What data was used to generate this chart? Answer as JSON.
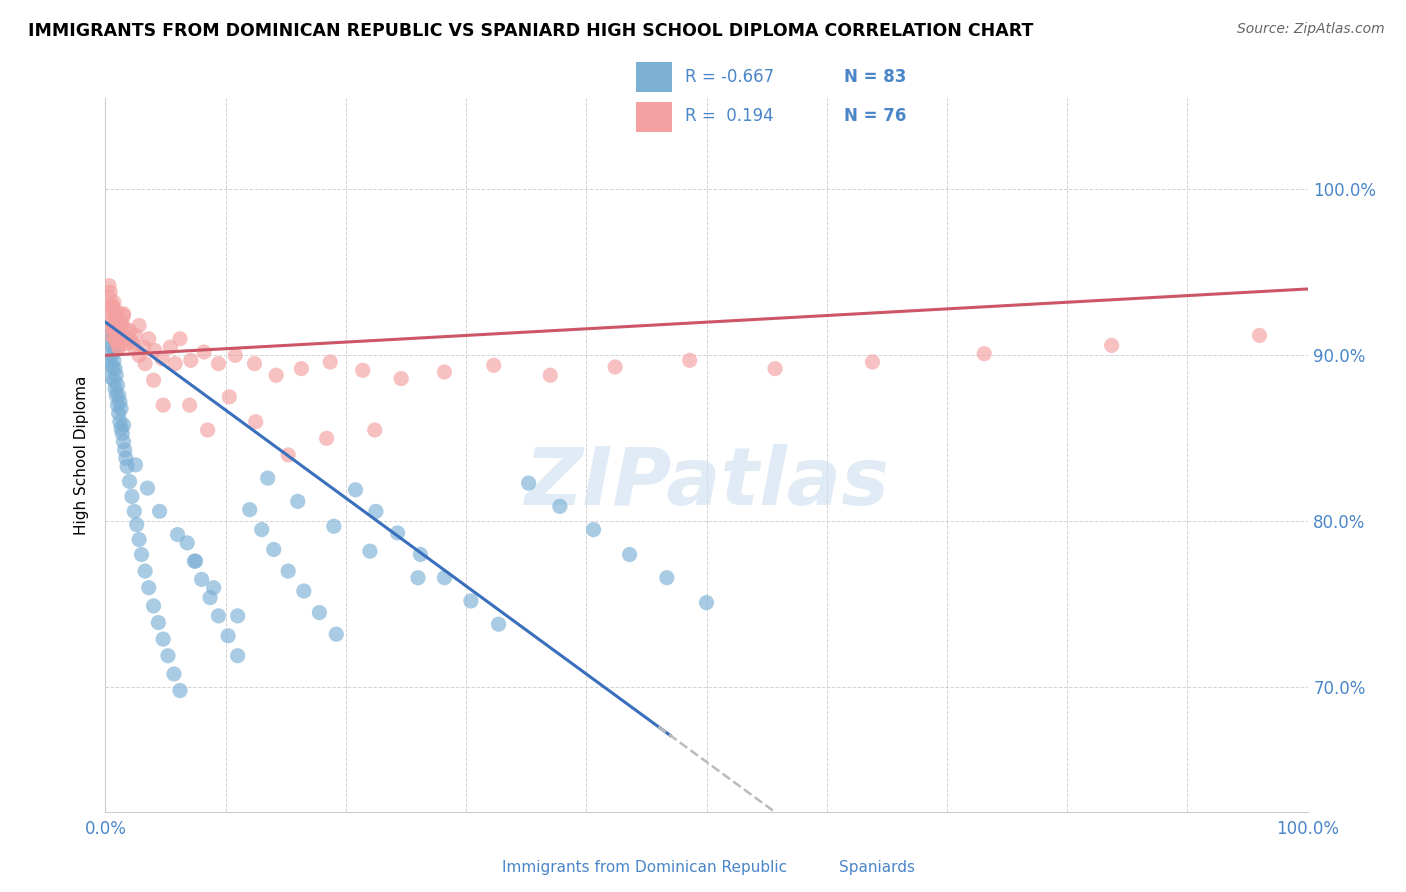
{
  "title": "IMMIGRANTS FROM DOMINICAN REPUBLIC VS SPANIARD HIGH SCHOOL DIPLOMA CORRELATION CHART",
  "source": "Source: ZipAtlas.com",
  "ylabel": "High School Diploma",
  "color_blue": "#7bafd4",
  "color_pink": "#f4a0a0",
  "color_blue_line": "#3a6fbb",
  "color_pink_line": "#cc5566",
  "color_dashed": "#bbbbbb",
  "watermark": "ZIPatlas",
  "r_blue": -0.667,
  "n_blue": 83,
  "r_pink": 0.194,
  "n_pink": 76,
  "xlim": [
    0.0,
    1.0
  ],
  "ylim": [
    0.625,
    1.055
  ],
  "ytick_positions": [
    0.7,
    0.8,
    0.9,
    1.0
  ],
  "ytick_labels": [
    "70.0%",
    "80.0%",
    "90.0%",
    "100.0%"
  ],
  "xtick_positions": [
    0.0,
    0.1,
    0.2,
    0.3,
    0.4,
    0.5,
    0.6,
    0.7,
    0.8,
    0.9,
    1.0
  ],
  "legend_blue_r": "R = -0.667",
  "legend_blue_n": "N = 83",
  "legend_pink_r": "R =  0.194",
  "legend_pink_n": "N = 76",
  "label_blue": "Immigrants from Dominican Republic",
  "label_pink": "Spaniards",
  "text_color": "#4a86c8",
  "blue_x": [
    0.005,
    0.005,
    0.006,
    0.006,
    0.007,
    0.007,
    0.007,
    0.008,
    0.008,
    0.008,
    0.009,
    0.009,
    0.01,
    0.01,
    0.011,
    0.011,
    0.012,
    0.012,
    0.013,
    0.013,
    0.014,
    0.015,
    0.016,
    0.017,
    0.018,
    0.02,
    0.022,
    0.024,
    0.026,
    0.028,
    0.03,
    0.033,
    0.036,
    0.04,
    0.044,
    0.048,
    0.052,
    0.057,
    0.062,
    0.068,
    0.074,
    0.08,
    0.087,
    0.094,
    0.102,
    0.11,
    0.12,
    0.13,
    0.14,
    0.152,
    0.165,
    0.178,
    0.192,
    0.208,
    0.225,
    0.243,
    0.262,
    0.282,
    0.304,
    0.327,
    0.352,
    0.378,
    0.406,
    0.436,
    0.467,
    0.5,
    0.002,
    0.003,
    0.004,
    0.004,
    0.015,
    0.025,
    0.035,
    0.045,
    0.06,
    0.075,
    0.09,
    0.11,
    0.135,
    0.16,
    0.19,
    0.22,
    0.26
  ],
  "blue_y": [
    0.9,
    0.912,
    0.893,
    0.905,
    0.885,
    0.897,
    0.91,
    0.88,
    0.892,
    0.903,
    0.876,
    0.888,
    0.87,
    0.882,
    0.865,
    0.876,
    0.86,
    0.872,
    0.856,
    0.868,
    0.853,
    0.848,
    0.843,
    0.838,
    0.833,
    0.824,
    0.815,
    0.806,
    0.798,
    0.789,
    0.78,
    0.77,
    0.76,
    0.749,
    0.739,
    0.729,
    0.719,
    0.708,
    0.698,
    0.787,
    0.776,
    0.765,
    0.754,
    0.743,
    0.731,
    0.719,
    0.807,
    0.795,
    0.783,
    0.77,
    0.758,
    0.745,
    0.732,
    0.819,
    0.806,
    0.793,
    0.78,
    0.766,
    0.752,
    0.738,
    0.823,
    0.809,
    0.795,
    0.78,
    0.766,
    0.751,
    0.916,
    0.908,
    0.895,
    0.887,
    0.858,
    0.834,
    0.82,
    0.806,
    0.792,
    0.776,
    0.76,
    0.743,
    0.826,
    0.812,
    0.797,
    0.782,
    0.766
  ],
  "pink_x": [
    0.004,
    0.005,
    0.005,
    0.006,
    0.006,
    0.007,
    0.007,
    0.008,
    0.008,
    0.009,
    0.009,
    0.01,
    0.01,
    0.011,
    0.012,
    0.013,
    0.014,
    0.015,
    0.016,
    0.018,
    0.02,
    0.022,
    0.025,
    0.028,
    0.032,
    0.036,
    0.041,
    0.047,
    0.054,
    0.062,
    0.071,
    0.082,
    0.094,
    0.108,
    0.124,
    0.142,
    0.163,
    0.187,
    0.214,
    0.246,
    0.282,
    0.323,
    0.37,
    0.424,
    0.486,
    0.557,
    0.638,
    0.731,
    0.837,
    0.96,
    0.003,
    0.003,
    0.004,
    0.005,
    0.006,
    0.007,
    0.008,
    0.009,
    0.011,
    0.013,
    0.015,
    0.017,
    0.02,
    0.024,
    0.028,
    0.033,
    0.04,
    0.048,
    0.058,
    0.07,
    0.085,
    0.103,
    0.125,
    0.152,
    0.184,
    0.224
  ],
  "pink_y": [
    0.92,
    0.912,
    0.928,
    0.916,
    0.93,
    0.918,
    0.932,
    0.91,
    0.924,
    0.908,
    0.922,
    0.914,
    0.926,
    0.905,
    0.918,
    0.911,
    0.919,
    0.924,
    0.912,
    0.907,
    0.915,
    0.908,
    0.912,
    0.918,
    0.905,
    0.91,
    0.903,
    0.898,
    0.905,
    0.91,
    0.897,
    0.902,
    0.895,
    0.9,
    0.895,
    0.888,
    0.892,
    0.896,
    0.891,
    0.886,
    0.89,
    0.894,
    0.888,
    0.893,
    0.897,
    0.892,
    0.896,
    0.901,
    0.906,
    0.912,
    0.935,
    0.942,
    0.938,
    0.93,
    0.925,
    0.92,
    0.915,
    0.91,
    0.905,
    0.92,
    0.925,
    0.915,
    0.91,
    0.905,
    0.9,
    0.895,
    0.885,
    0.87,
    0.895,
    0.87,
    0.855,
    0.875,
    0.86,
    0.84,
    0.85,
    0.855
  ]
}
